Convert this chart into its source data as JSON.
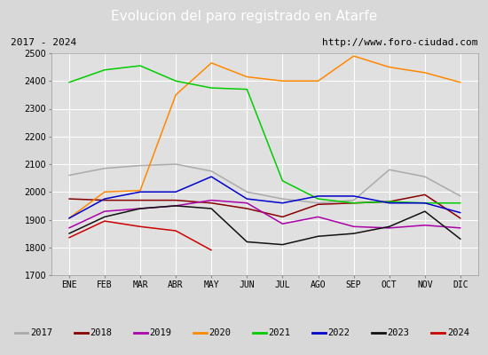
{
  "title": "Evolucion del paro registrado en Atarfe",
  "subtitle_left": "2017 - 2024",
  "subtitle_right": "http://www.foro-ciudad.com",
  "months": [
    "ENE",
    "FEB",
    "MAR",
    "ABR",
    "MAY",
    "JUN",
    "JUL",
    "AGO",
    "SEP",
    "OCT",
    "NOV",
    "DIC"
  ],
  "ylim": [
    1700,
    2500
  ],
  "yticks": [
    1700,
    1800,
    1900,
    2000,
    2100,
    2200,
    2300,
    2400,
    2500
  ],
  "series": {
    "2017": {
      "color": "#aaaaaa",
      "data": [
        2060,
        2085,
        2095,
        2100,
        2075,
        2000,
        1975,
        1960,
        1970,
        2080,
        2055,
        1985
      ]
    },
    "2018": {
      "color": "#880000",
      "data": [
        1975,
        1970,
        1970,
        1970,
        1960,
        1940,
        1910,
        1955,
        1960,
        1965,
        1990,
        1905
      ]
    },
    "2019": {
      "color": "#aa00aa",
      "data": [
        1870,
        1930,
        1940,
        1950,
        1970,
        1960,
        1885,
        1910,
        1875,
        1870,
        1880,
        1870
      ]
    },
    "2020": {
      "color": "#ff8800",
      "data": [
        1905,
        2000,
        2005,
        2350,
        2465,
        2415,
        2400,
        2400,
        2490,
        2450,
        2430,
        2395
      ]
    },
    "2021": {
      "color": "#00cc00",
      "data": [
        2395,
        2440,
        2455,
        2400,
        2375,
        2370,
        2040,
        1975,
        1960,
        1965,
        1960,
        1960
      ]
    },
    "2022": {
      "color": "#0000cc",
      "data": [
        1905,
        1975,
        2000,
        2000,
        2055,
        1975,
        1960,
        1985,
        1985,
        1960,
        1960,
        1925
      ]
    },
    "2023": {
      "color": "#111111",
      "data": [
        1850,
        1910,
        1940,
        1950,
        1940,
        1820,
        1810,
        1840,
        1850,
        1875,
        1930,
        1830
      ]
    },
    "2024": {
      "color": "#cc0000",
      "data": [
        1835,
        1895,
        1875,
        1860,
        1790,
        null,
        null,
        null,
        null,
        null,
        null,
        null
      ]
    }
  },
  "background_color": "#d8d8d8",
  "plot_bg_color": "#e0e0e0",
  "title_bg_color": "#4d8fcc",
  "title_color": "#ffffff",
  "header_bg_color": "#e0e0e0",
  "grid_color": "#ffffff",
  "legend_bg_color": "#eeeeee",
  "border_color": "#555555"
}
